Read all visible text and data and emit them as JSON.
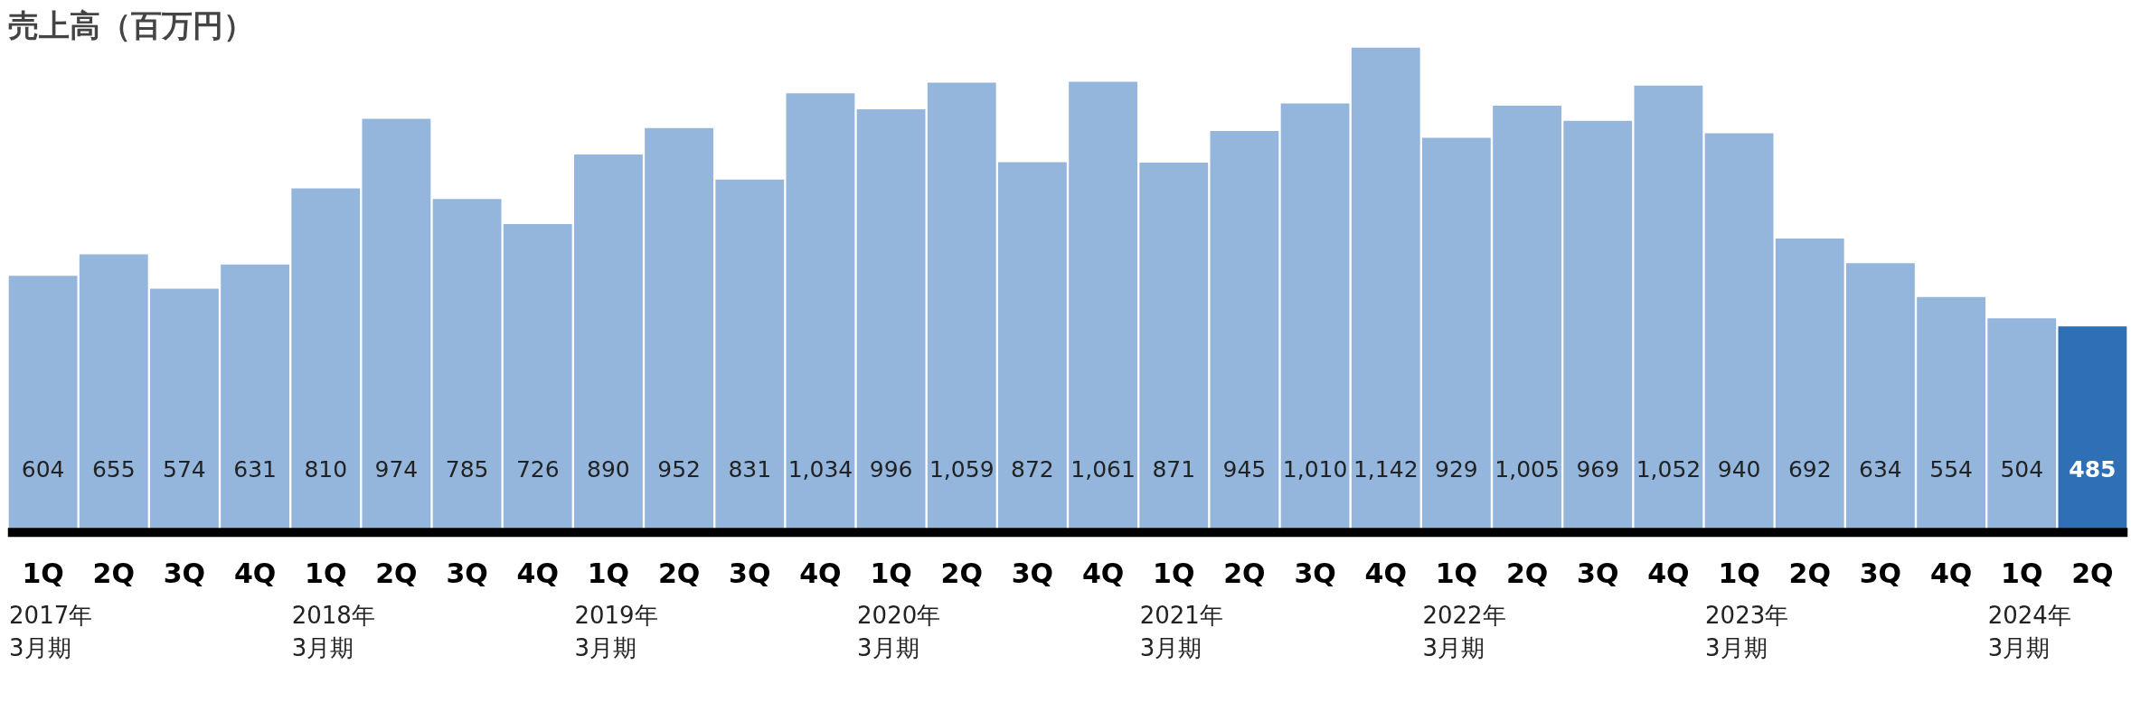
{
  "chart_data": {
    "type": "bar",
    "title": "売上高（百万円）",
    "categories": [
      "1Q",
      "2Q",
      "3Q",
      "4Q",
      "1Q",
      "2Q",
      "3Q",
      "4Q",
      "1Q",
      "2Q",
      "3Q",
      "4Q",
      "1Q",
      "2Q",
      "3Q",
      "4Q",
      "1Q",
      "2Q",
      "3Q",
      "4Q",
      "1Q",
      "2Q",
      "3Q",
      "4Q",
      "1Q",
      "2Q",
      "3Q",
      "4Q",
      "1Q",
      "2Q"
    ],
    "values": [
      604,
      655,
      574,
      631,
      810,
      974,
      785,
      726,
      890,
      952,
      831,
      1034,
      996,
      1059,
      872,
      1061,
      871,
      945,
      1010,
      1142,
      929,
      1005,
      969,
      1052,
      940,
      692,
      634,
      554,
      504,
      485
    ],
    "colors": [
      "#95b6dc",
      "#95b6dc",
      "#95b6dc",
      "#95b6dc",
      "#95b6dc",
      "#95b6dc",
      "#95b6dc",
      "#95b6dc",
      "#95b6dc",
      "#95b6dc",
      "#95b6dc",
      "#95b6dc",
      "#95b6dc",
      "#95b6dc",
      "#95b6dc",
      "#95b6dc",
      "#95b6dc",
      "#95b6dc",
      "#95b6dc",
      "#95b6dc",
      "#95b6dc",
      "#95b6dc",
      "#95b6dc",
      "#95b6dc",
      "#95b6dc",
      "#95b6dc",
      "#95b6dc",
      "#95b6dc",
      "#95b6dc",
      "#2e6fb5"
    ],
    "value_labels": [
      "604",
      "655",
      "574",
      "631",
      "810",
      "974",
      "785",
      "726",
      "890",
      "952",
      "831",
      "1,034",
      "996",
      "1,059",
      "872",
      "1,061",
      "871",
      "945",
      "1,010",
      "1,142",
      "929",
      "1,005",
      "969",
      "1,052",
      "940",
      "692",
      "634",
      "554",
      "504",
      "485"
    ],
    "annotations": [
      "2017年\n3月期",
      "2018年\n3月期",
      "2019年\n3月期",
      "2020年\n3月期",
      "2021年\n3月期",
      "2022年\n3月期",
      "2023年\n3月期",
      "2024年\n3月期"
    ]
  }
}
